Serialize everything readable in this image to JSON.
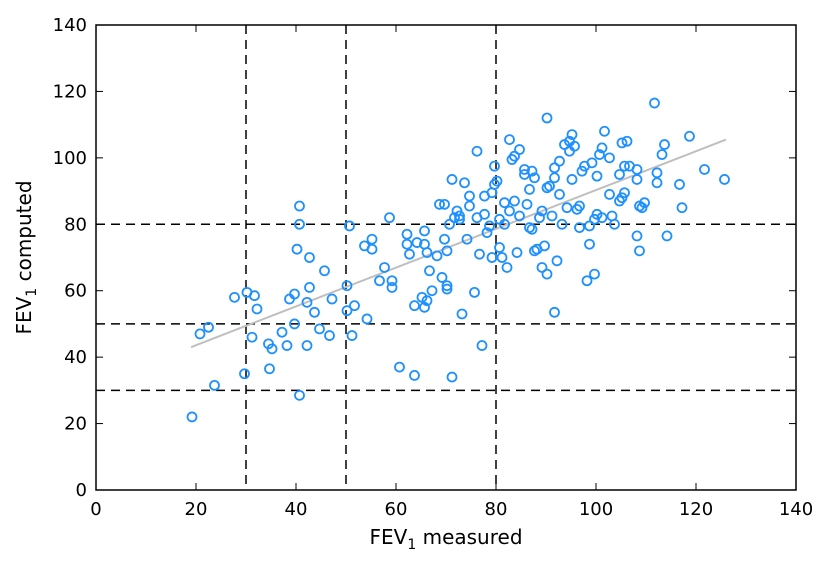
{
  "chart_data": {
    "type": "scatter",
    "x_label": {
      "main": "FEV",
      "sub": "1",
      "rest": " measured"
    },
    "y_label": {
      "main": "FEV",
      "sub": "1",
      "rest": " computed"
    },
    "xlim": [
      0,
      140
    ],
    "ylim": [
      0,
      140
    ],
    "x_ticks": [
      0,
      20,
      40,
      60,
      80,
      100,
      120,
      140
    ],
    "y_ticks": [
      0,
      20,
      40,
      60,
      80,
      100,
      120,
      140
    ],
    "grid": false,
    "reference_lines": {
      "vertical": [
        30,
        50,
        80
      ],
      "horizontal": [
        30,
        50,
        80
      ],
      "style": "dashed",
      "color": "#000000"
    },
    "trend_line": {
      "x": [
        19,
        126
      ],
      "y": [
        43,
        105.5
      ],
      "color": "#bfbfbf"
    },
    "marker_color": "#1e90ff",
    "points": [
      [
        19.2,
        22
      ],
      [
        20.8,
        47
      ],
      [
        22.5,
        49
      ],
      [
        23.7,
        31.5
      ],
      [
        27.7,
        58
      ],
      [
        29.7,
        35
      ],
      [
        30.2,
        59.5
      ],
      [
        31.2,
        46
      ],
      [
        31.7,
        58.5
      ],
      [
        32.2,
        54.5
      ],
      [
        34.5,
        44
      ],
      [
        35.2,
        42.5
      ],
      [
        34.7,
        36.5
      ],
      [
        37.2,
        47.5
      ],
      [
        38.2,
        43.5
      ],
      [
        38.7,
        57.5
      ],
      [
        39.7,
        59
      ],
      [
        39.7,
        50
      ],
      [
        40.2,
        72.5
      ],
      [
        40.7,
        85.5
      ],
      [
        40.7,
        80
      ],
      [
        40.7,
        28.5
      ],
      [
        42.2,
        43.5
      ],
      [
        42.2,
        56.5
      ],
      [
        42.7,
        61
      ],
      [
        42.7,
        70
      ],
      [
        43.7,
        53.5
      ],
      [
        44.7,
        48.5
      ],
      [
        45.7,
        66
      ],
      [
        46.7,
        46.5
      ],
      [
        47.2,
        57.5
      ],
      [
        50.2,
        61.5
      ],
      [
        50.2,
        54
      ],
      [
        50.7,
        79.5
      ],
      [
        51.2,
        46.5
      ],
      [
        51.7,
        55.5
      ],
      [
        53.7,
        73.5
      ],
      [
        54.2,
        51.5
      ],
      [
        55.2,
        75.5
      ],
      [
        55.2,
        72.5
      ],
      [
        56.7,
        63
      ],
      [
        57.7,
        67
      ],
      [
        58.7,
        82
      ],
      [
        59.2,
        61
      ],
      [
        59.2,
        63
      ],
      [
        60.7,
        37
      ],
      [
        62.2,
        77
      ],
      [
        62.2,
        74
      ],
      [
        62.7,
        71
      ],
      [
        63.7,
        34.5
      ],
      [
        63.7,
        55.5
      ],
      [
        64.2,
        74.5
      ],
      [
        65.2,
        58
      ],
      [
        65.7,
        78
      ],
      [
        65.7,
        74
      ],
      [
        65.7,
        55
      ],
      [
        66.2,
        57
      ],
      [
        66.2,
        71.5
      ],
      [
        66.7,
        66
      ],
      [
        67.2,
        60
      ],
      [
        68.2,
        70.5
      ],
      [
        68.7,
        86
      ],
      [
        69.2,
        64
      ],
      [
        69.7,
        75.5
      ],
      [
        69.7,
        86
      ],
      [
        70.2,
        72
      ],
      [
        70.2,
        61.5
      ],
      [
        70.2,
        60.5
      ],
      [
        70.7,
        80
      ],
      [
        71.2,
        93.5
      ],
      [
        71.2,
        34
      ],
      [
        71.7,
        82
      ],
      [
        72.2,
        84
      ],
      [
        72.7,
        81.5
      ],
      [
        72.7,
        82.5
      ],
      [
        73.2,
        53
      ],
      [
        73.7,
        92.5
      ],
      [
        74.2,
        75.5
      ],
      [
        74.7,
        88.5
      ],
      [
        74.7,
        85.5
      ],
      [
        75.7,
        59.5
      ],
      [
        76.2,
        102
      ],
      [
        76.2,
        82
      ],
      [
        76.7,
        71
      ],
      [
        77.2,
        43.5
      ],
      [
        77.7,
        88.5
      ],
      [
        77.7,
        83
      ],
      [
        78.2,
        77.5
      ],
      [
        78.7,
        79.5
      ],
      [
        79.2,
        89.5
      ],
      [
        79.2,
        70
      ],
      [
        79.7,
        92
      ],
      [
        79.7,
        97.5
      ],
      [
        80.2,
        93
      ],
      [
        80.7,
        81.5
      ],
      [
        80.7,
        73
      ],
      [
        81.2,
        70
      ],
      [
        81.7,
        86.5
      ],
      [
        81.7,
        80
      ],
      [
        82.2,
        67
      ],
      [
        82.7,
        84
      ],
      [
        82.7,
        105.5
      ],
      [
        83.2,
        99.5
      ],
      [
        83.7,
        100.5
      ],
      [
        83.7,
        87
      ],
      [
        84.2,
        71.5
      ],
      [
        84.7,
        102.5
      ],
      [
        84.7,
        82.5
      ],
      [
        85.7,
        96.5
      ],
      [
        85.7,
        95
      ],
      [
        86.2,
        86
      ],
      [
        86.7,
        79
      ],
      [
        86.7,
        90.5
      ],
      [
        87.2,
        96
      ],
      [
        87.2,
        78.5
      ],
      [
        87.7,
        72
      ],
      [
        87.7,
        94
      ],
      [
        88.2,
        72.5
      ],
      [
        88.7,
        82
      ],
      [
        89.2,
        67
      ],
      [
        89.2,
        84
      ],
      [
        89.7,
        73.5
      ],
      [
        90.2,
        65
      ],
      [
        90.2,
        91
      ],
      [
        90.2,
        112
      ],
      [
        90.7,
        91.5
      ],
      [
        91.2,
        82.5
      ],
      [
        91.7,
        97
      ],
      [
        91.7,
        94
      ],
      [
        91.7,
        53.5
      ],
      [
        92.2,
        69
      ],
      [
        92.7,
        89
      ],
      [
        92.7,
        99
      ],
      [
        93.2,
        80
      ],
      [
        93.7,
        104
      ],
      [
        94.2,
        85
      ],
      [
        94.7,
        102
      ],
      [
        94.7,
        105
      ],
      [
        95.2,
        107
      ],
      [
        95.2,
        93.5
      ],
      [
        95.7,
        103.5
      ],
      [
        96.2,
        84.5
      ],
      [
        96.7,
        79
      ],
      [
        96.7,
        85.5
      ],
      [
        97.2,
        96
      ],
      [
        97.7,
        97.5
      ],
      [
        98.2,
        63
      ],
      [
        98.7,
        74
      ],
      [
        98.7,
        79.5
      ],
      [
        99.2,
        98.5
      ],
      [
        99.7,
        65
      ],
      [
        99.7,
        81.5
      ],
      [
        100.2,
        83
      ],
      [
        100.2,
        94.5
      ],
      [
        100.7,
        101
      ],
      [
        101.2,
        103
      ],
      [
        101.2,
        82
      ],
      [
        101.7,
        108
      ],
      [
        102.7,
        100
      ],
      [
        102.7,
        89
      ],
      [
        103.2,
        82.5
      ],
      [
        103.7,
        80
      ],
      [
        104.7,
        95
      ],
      [
        104.7,
        87
      ],
      [
        105.2,
        104.5
      ],
      [
        105.2,
        88
      ],
      [
        105.7,
        89.5
      ],
      [
        105.7,
        97.5
      ],
      [
        106.2,
        105
      ],
      [
        106.7,
        97.5
      ],
      [
        108.2,
        96.5
      ],
      [
        108.2,
        93.5
      ],
      [
        108.2,
        76.5
      ],
      [
        108.7,
        72
      ],
      [
        108.7,
        85.5
      ],
      [
        109.2,
        85
      ],
      [
        109.7,
        86.5
      ],
      [
        111.7,
        116.5
      ],
      [
        112.2,
        92.5
      ],
      [
        112.2,
        95.5
      ],
      [
        113.2,
        101
      ],
      [
        113.7,
        104
      ],
      [
        114.2,
        76.5
      ],
      [
        116.7,
        92
      ],
      [
        117.2,
        85
      ],
      [
        118.7,
        106.5
      ],
      [
        121.7,
        96.5
      ],
      [
        125.7,
        93.5
      ]
    ]
  }
}
